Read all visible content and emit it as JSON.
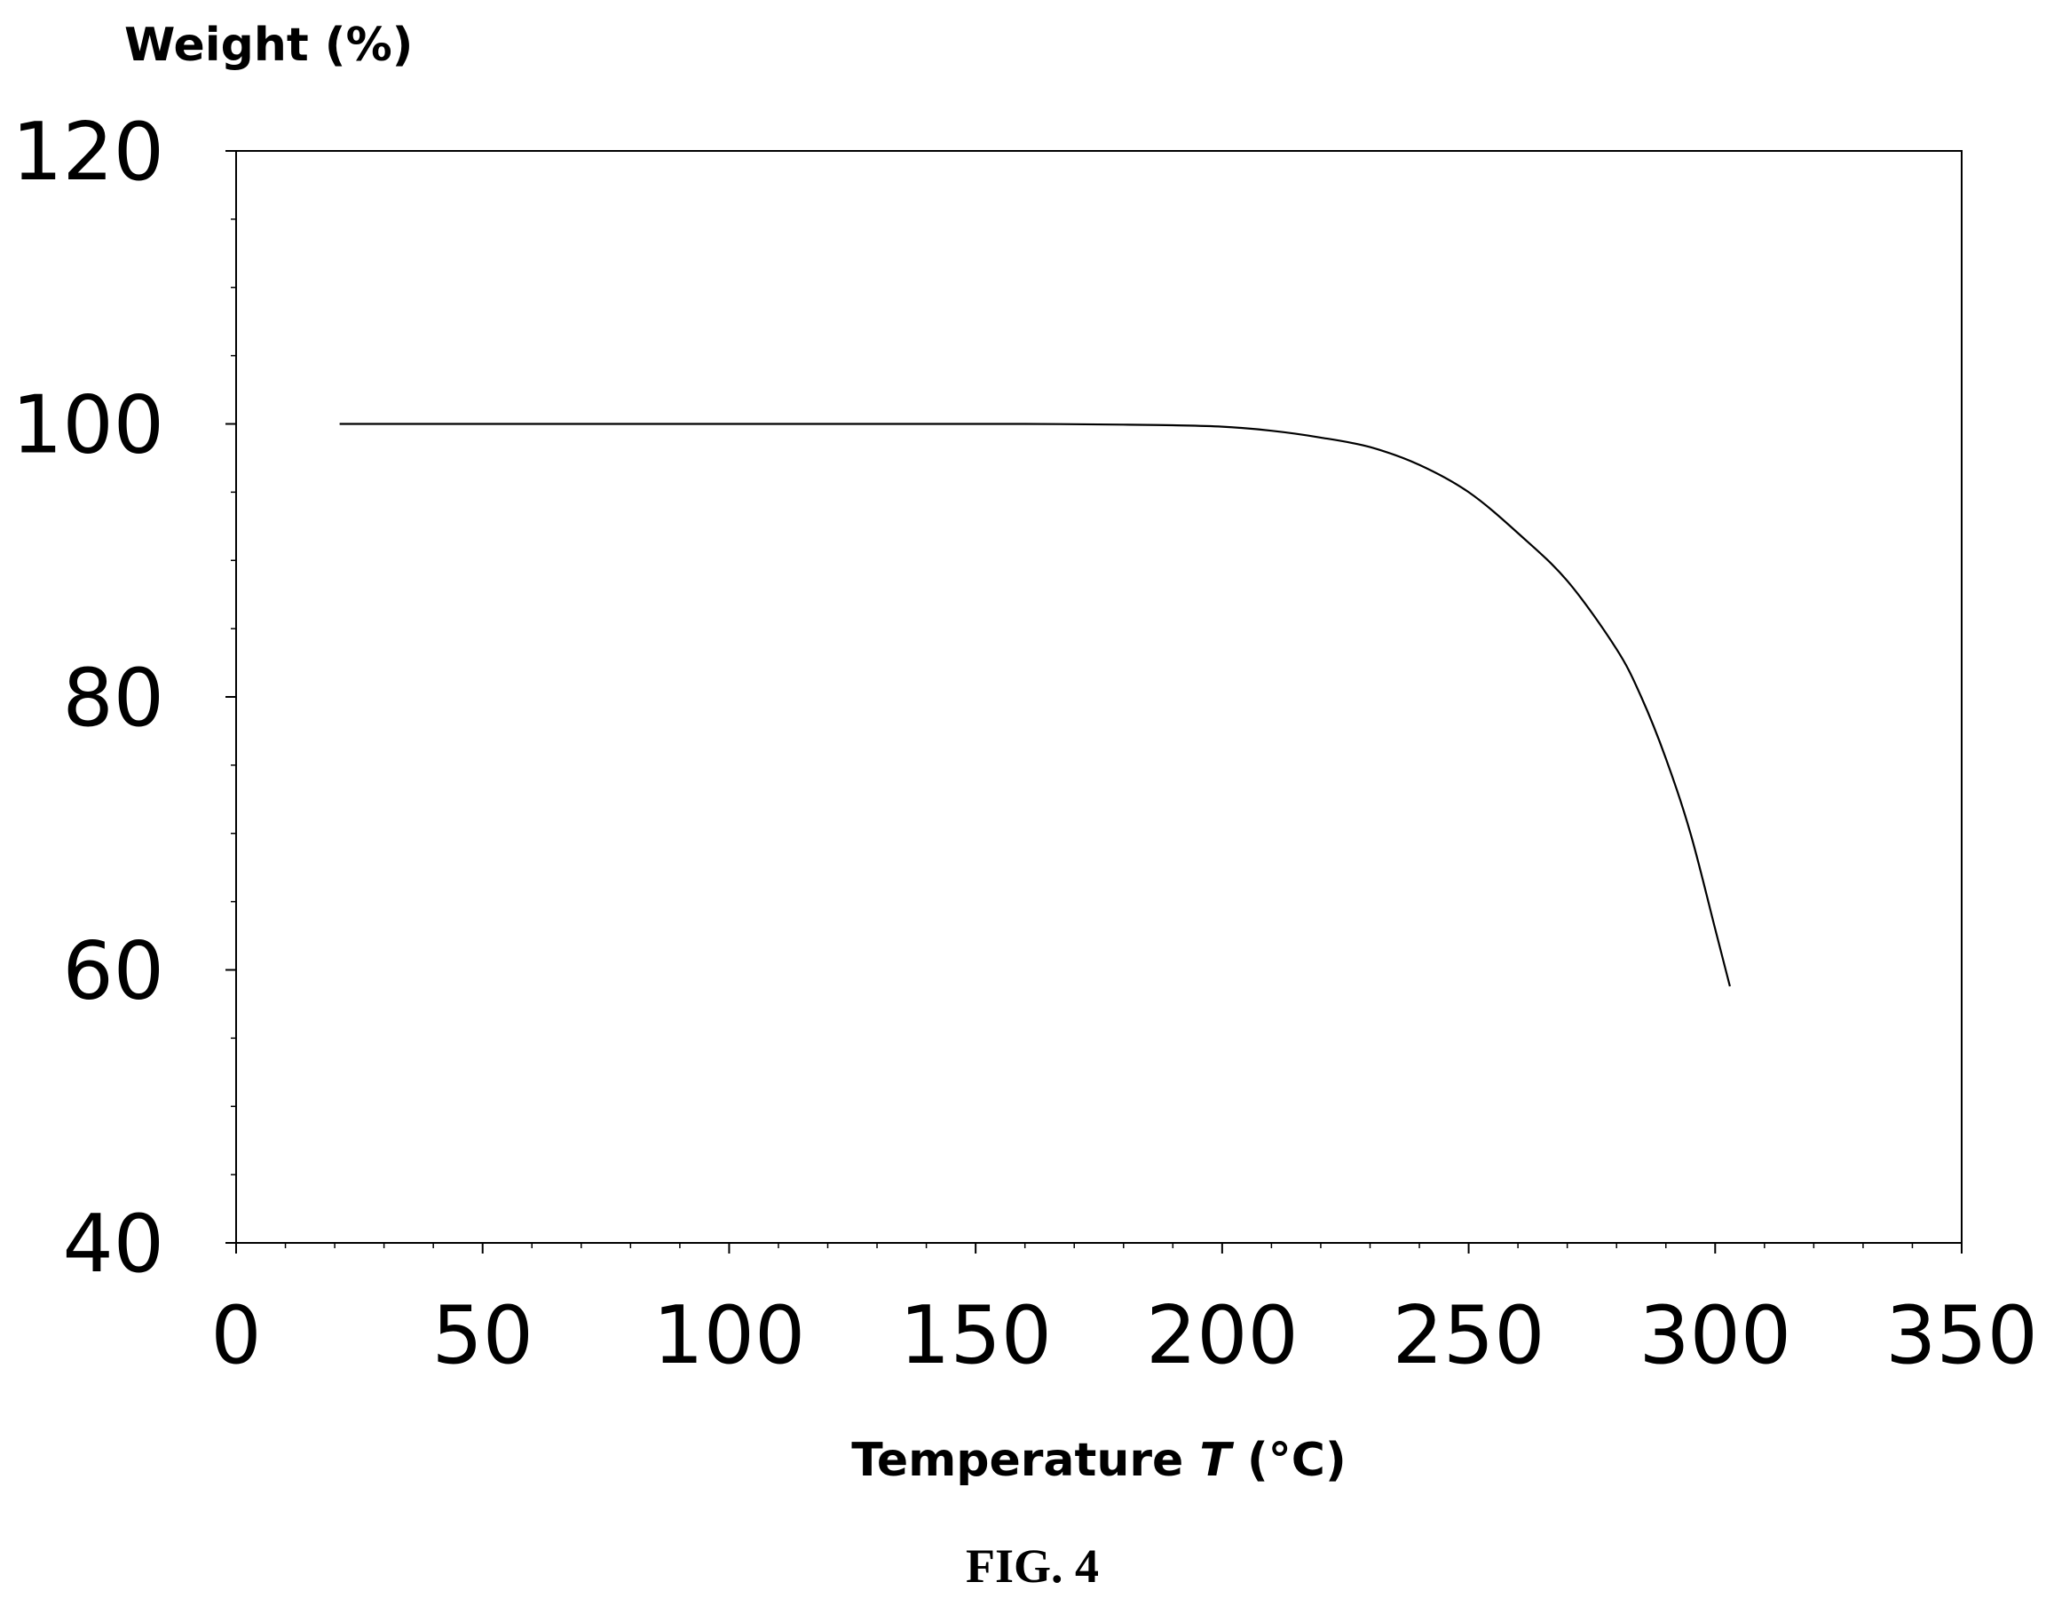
{
  "figure_caption": "FIG. 4",
  "chart_data": {
    "type": "line",
    "title": "",
    "ylabel": "Weight (%)",
    "xlabel_parts": [
      "Temperature ",
      "T",
      " (°C)"
    ],
    "xlim": [
      0,
      350
    ],
    "ylim": [
      40,
      120
    ],
    "x_ticks": [
      "0",
      "50",
      "100",
      "150",
      "200",
      "250",
      "300",
      "350"
    ],
    "y_ticks": [
      "40",
      "60",
      "80",
      "100",
      "120"
    ],
    "x_tick_values": [
      0,
      50,
      100,
      150,
      200,
      250,
      300,
      350
    ],
    "y_tick_values": [
      40,
      60,
      80,
      100,
      120
    ],
    "minor_x_step": 10,
    "minor_y_step": 5,
    "grid": false,
    "legend": "none",
    "line_color": "#000000",
    "series": [
      {
        "x": [
          21,
          40,
          60,
          80,
          100,
          120,
          140,
          160,
          180,
          190,
          200,
          210,
          220,
          230,
          240,
          250,
          260,
          270,
          280,
          285,
          290,
          295,
          300,
          303
        ],
        "y": [
          100.0,
          100.0,
          100.0,
          100.0,
          100.0,
          100.0,
          100.0,
          100.0,
          99.95,
          99.9,
          99.8,
          99.5,
          99.0,
          98.3,
          97.0,
          95.0,
          92.0,
          88.5,
          83.5,
          80.0,
          75.5,
          70.0,
          63.0,
          58.8
        ]
      }
    ]
  }
}
